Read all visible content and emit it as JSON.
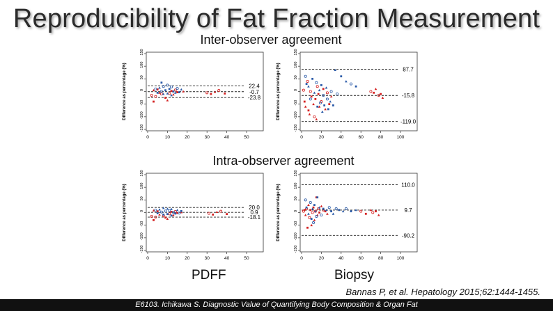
{
  "title": "Reproducibility of Fat Fraction Measurement",
  "sections": {
    "inter": "Inter-observer agreement",
    "intra": "Intra-observer agreement"
  },
  "x_names": {
    "pdff": "PDFF",
    "biopsy": "Biopsy"
  },
  "citation": "Bannas P, et al. Hepatology 2015;62:1444-1455.",
  "footer": "E6103. Ichikawa S. Diagnostic Value of Quantifying  Body Composition & Organ Fat",
  "colors": {
    "red": "#d42020",
    "blue": "#2a5aa8",
    "line": "#222222"
  },
  "chart_data": [
    {
      "id": "inter-pdff",
      "type": "scatter",
      "xlabel": "PDFF",
      "ylabel": "Difference as percentage (%)",
      "xlim": [
        0,
        50
      ],
      "ylim": [
        -150,
        150
      ],
      "xticks": [
        0,
        10,
        20,
        30,
        40,
        50
      ],
      "yticks": [
        -150,
        -100,
        -50,
        0,
        50,
        100,
        150
      ],
      "lines": [
        {
          "value": 22.4,
          "label": "22.4"
        },
        {
          "value": -0.7,
          "label": "-0.7"
        },
        {
          "value": -23.8,
          "label": "-23.8"
        }
      ],
      "series": [
        {
          "name": "red",
          "points": [
            [
              2,
              -15
            ],
            [
              3,
              -40
            ],
            [
              3,
              5
            ],
            [
              4,
              -20
            ],
            [
              5,
              8
            ],
            [
              6,
              -5
            ],
            [
              7,
              -10
            ],
            [
              9,
              -25
            ],
            [
              10,
              -35
            ],
            [
              11,
              -8
            ],
            [
              12,
              2
            ],
            [
              13,
              -12
            ],
            [
              14,
              6
            ],
            [
              15,
              -3
            ],
            [
              18,
              0
            ],
            [
              30,
              -5
            ],
            [
              32,
              -10
            ],
            [
              34,
              -2
            ],
            [
              36,
              4
            ],
            [
              39,
              -8
            ]
          ]
        },
        {
          "name": "blue",
          "points": [
            [
              4,
              10
            ],
            [
              5,
              -5
            ],
            [
              6,
              15
            ],
            [
              7,
              0
            ],
            [
              7,
              35
            ],
            [
              8,
              -10
            ],
            [
              8,
              20
            ],
            [
              9,
              5
            ],
            [
              10,
              -8
            ],
            [
              10,
              25
            ],
            [
              11,
              10
            ],
            [
              12,
              -15
            ],
            [
              12,
              18
            ],
            [
              13,
              0
            ],
            [
              14,
              -5
            ],
            [
              15,
              12
            ],
            [
              16,
              -3
            ],
            [
              17,
              8
            ]
          ]
        }
      ]
    },
    {
      "id": "inter-biopsy",
      "type": "scatter",
      "xlabel": "Biopsy",
      "ylabel": "Difference as percentage (%)",
      "xlim": [
        0,
        100
      ],
      "ylim": [
        -150,
        150
      ],
      "xticks": [
        0,
        20,
        40,
        60,
        80,
        100
      ],
      "yticks": [
        -150,
        -100,
        -50,
        0,
        50,
        100,
        150
      ],
      "lines": [
        {
          "value": 87.7,
          "label": "87.7"
        },
        {
          "value": -15.8,
          "label": "-15.8"
        },
        {
          "value": -119.0,
          "label": "-119.0"
        }
      ],
      "series": [
        {
          "name": "red",
          "points": [
            [
              2,
              5
            ],
            [
              3,
              -40
            ],
            [
              4,
              -60
            ],
            [
              6,
              40
            ],
            [
              7,
              -75
            ],
            [
              8,
              -90
            ],
            [
              9,
              0
            ],
            [
              10,
              -20
            ],
            [
              12,
              -50
            ],
            [
              13,
              -100
            ],
            [
              14,
              -30
            ],
            [
              15,
              -110
            ],
            [
              16,
              20
            ],
            [
              17,
              -10
            ],
            [
              18,
              -60
            ],
            [
              20,
              -40
            ],
            [
              22,
              10
            ],
            [
              24,
              -70
            ],
            [
              26,
              -5
            ],
            [
              28,
              -50
            ],
            [
              30,
              -20
            ],
            [
              70,
              0
            ],
            [
              73,
              -5
            ],
            [
              75,
              10
            ],
            [
              78,
              -15
            ],
            [
              80,
              -10
            ],
            [
              82,
              -25
            ]
          ]
        },
        {
          "name": "blue",
          "points": [
            [
              4,
              60
            ],
            [
              5,
              30
            ],
            [
              7,
              20
            ],
            [
              9,
              -30
            ],
            [
              11,
              50
            ],
            [
              13,
              -5
            ],
            [
              15,
              35
            ],
            [
              16,
              -60
            ],
            [
              18,
              5
            ],
            [
              19,
              -45
            ],
            [
              20,
              25
            ],
            [
              21,
              -80
            ],
            [
              22,
              -15
            ],
            [
              23,
              -55
            ],
            [
              25,
              15
            ],
            [
              26,
              -30
            ],
            [
              27,
              -70
            ],
            [
              29,
              -40
            ],
            [
              30,
              0
            ],
            [
              32,
              -55
            ],
            [
              34,
              85
            ],
            [
              36,
              -10
            ],
            [
              40,
              60
            ],
            [
              45,
              40
            ],
            [
              50,
              30
            ],
            [
              55,
              20
            ]
          ]
        }
      ]
    },
    {
      "id": "intra-pdff",
      "type": "scatter",
      "xlabel": "PDFF",
      "ylabel": "Difference as percentage (%)",
      "xlim": [
        0,
        50
      ],
      "ylim": [
        -150,
        150
      ],
      "xticks": [
        0,
        10,
        20,
        30,
        40,
        50
      ],
      "yticks": [
        -150,
        -100,
        -50,
        0,
        50,
        100,
        150
      ],
      "lines": [
        {
          "value": 20.0,
          "label": "20.0"
        },
        {
          "value": 0.9,
          "label": "0.9"
        },
        {
          "value": -18.1,
          "label": "-18.1"
        }
      ],
      "series": [
        {
          "name": "red",
          "points": [
            [
              2,
              -15
            ],
            [
              3,
              -30
            ],
            [
              3,
              8
            ],
            [
              4,
              -18
            ],
            [
              5,
              5
            ],
            [
              6,
              -8
            ],
            [
              8,
              -12
            ],
            [
              9,
              -20
            ],
            [
              10,
              -25
            ],
            [
              11,
              -5
            ],
            [
              12,
              3
            ],
            [
              13,
              -10
            ],
            [
              14,
              4
            ],
            [
              15,
              -2
            ],
            [
              17,
              1
            ],
            [
              31,
              -3
            ],
            [
              33,
              -8
            ],
            [
              35,
              2
            ],
            [
              37,
              5
            ],
            [
              40,
              -6
            ]
          ]
        },
        {
          "name": "blue",
          "points": [
            [
              4,
              10
            ],
            [
              5,
              -3
            ],
            [
              6,
              12
            ],
            [
              7,
              2
            ],
            [
              8,
              -8
            ],
            [
              8,
              18
            ],
            [
              9,
              6
            ],
            [
              10,
              -6
            ],
            [
              10,
              15
            ],
            [
              11,
              8
            ],
            [
              12,
              -12
            ],
            [
              12,
              14
            ],
            [
              13,
              1
            ],
            [
              14,
              -4
            ],
            [
              15,
              10
            ],
            [
              16,
              -2
            ],
            [
              17,
              6
            ]
          ]
        }
      ]
    },
    {
      "id": "intra-biopsy",
      "type": "scatter",
      "xlabel": "Biopsy",
      "ylabel": "Difference as percentage (%)",
      "xlim": [
        0,
        100
      ],
      "ylim": [
        -150,
        150
      ],
      "xticks": [
        0,
        20,
        40,
        60,
        80,
        100
      ],
      "yticks": [
        -150,
        -100,
        -50,
        0,
        50,
        100,
        150
      ],
      "lines": [
        {
          "value": 110.0,
          "label": "110.0"
        },
        {
          "value": 9.7,
          "label": "9.7"
        },
        {
          "value": -90.2,
          "label": "-90.2"
        }
      ],
      "series": [
        {
          "name": "red",
          "points": [
            [
              2,
              5
            ],
            [
              3,
              10
            ],
            [
              4,
              -10
            ],
            [
              5,
              15
            ],
            [
              6,
              -60
            ],
            [
              7,
              30
            ],
            [
              8,
              -20
            ],
            [
              9,
              10
            ],
            [
              10,
              -50
            ],
            [
              11,
              0
            ],
            [
              12,
              20
            ],
            [
              13,
              -30
            ],
            [
              14,
              5
            ],
            [
              15,
              60
            ],
            [
              16,
              -10
            ],
            [
              17,
              15
            ],
            [
              18,
              0
            ],
            [
              20,
              25
            ],
            [
              22,
              10
            ],
            [
              24,
              5
            ],
            [
              26,
              -5
            ],
            [
              60,
              5
            ],
            [
              65,
              -5
            ],
            [
              70,
              10
            ],
            [
              72,
              0
            ],
            [
              75,
              5
            ],
            [
              78,
              -10
            ]
          ]
        },
        {
          "name": "blue",
          "points": [
            [
              4,
              50
            ],
            [
              5,
              20
            ],
            [
              7,
              -5
            ],
            [
              9,
              40
            ],
            [
              10,
              -25
            ],
            [
              11,
              15
            ],
            [
              12,
              -40
            ],
            [
              13,
              30
            ],
            [
              14,
              5
            ],
            [
              15,
              -15
            ],
            [
              16,
              60
            ],
            [
              18,
              20
            ],
            [
              20,
              -10
            ],
            [
              22,
              15
            ],
            [
              25,
              10
            ],
            [
              28,
              20
            ],
            [
              30,
              5
            ],
            [
              32,
              -5
            ],
            [
              35,
              15
            ],
            [
              38,
              10
            ],
            [
              42,
              5
            ],
            [
              45,
              15
            ],
            [
              50,
              5
            ],
            [
              55,
              10
            ]
          ]
        }
      ]
    }
  ]
}
